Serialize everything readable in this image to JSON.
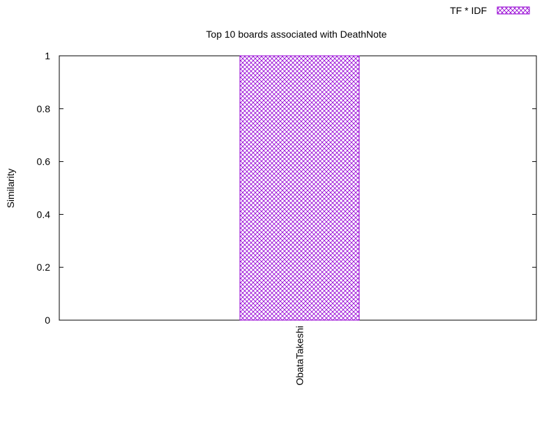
{
  "chart_data": {
    "type": "bar",
    "title": "Top 10 boards associated with DeathNote",
    "xlabel": "",
    "ylabel": "Similarity",
    "categories": [
      "ObataTakeshi"
    ],
    "series": [
      {
        "name": "TF * IDF",
        "values": [
          1.0
        ]
      }
    ],
    "ylim": [
      0,
      1
    ],
    "yticks": [
      "0",
      "0.2",
      "0.4",
      "0.6",
      "0.8",
      "1"
    ],
    "grid": false,
    "legend_position": "top-right",
    "bar_color": "#9400d3",
    "bar_pattern": "crosshatch"
  }
}
